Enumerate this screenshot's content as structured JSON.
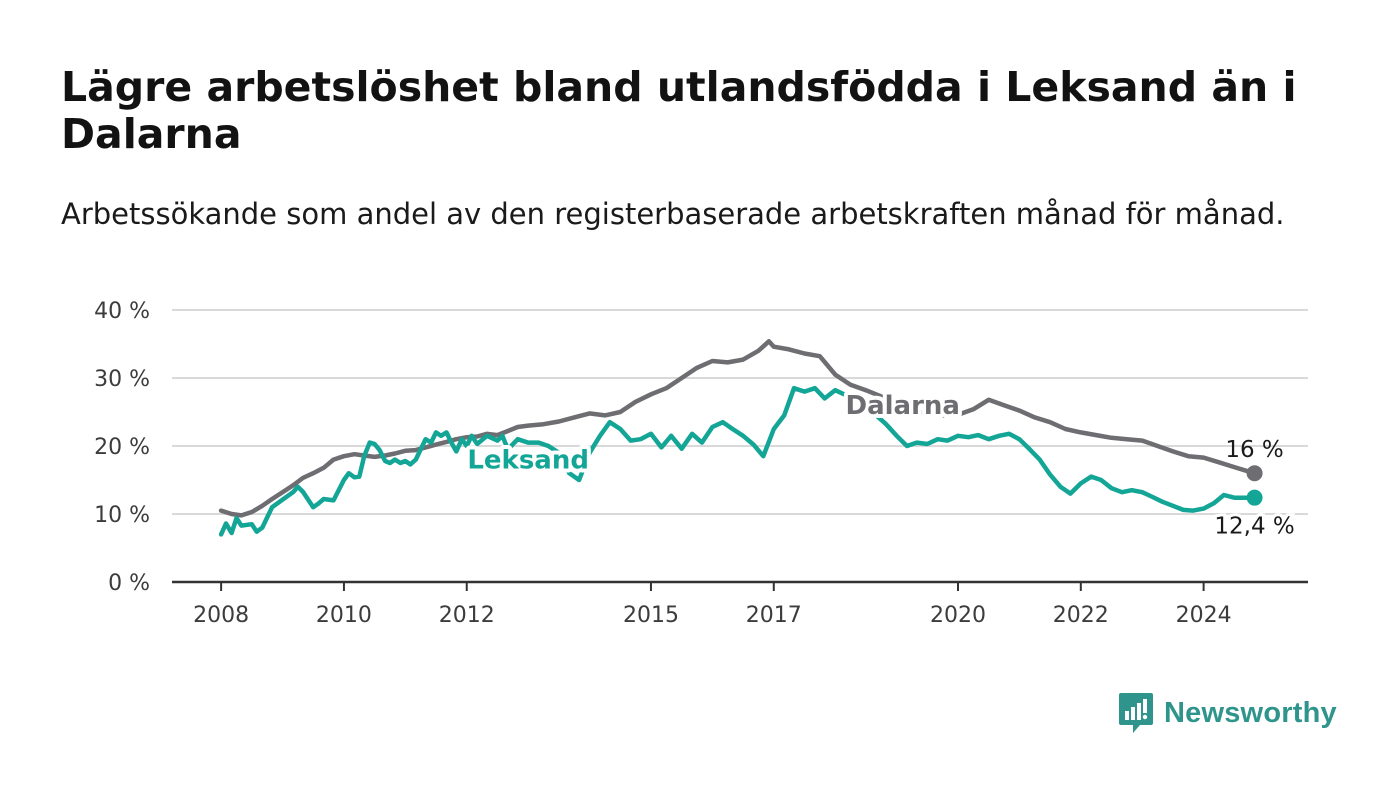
{
  "header": {
    "title": "Lägre arbetslöshet bland utlandsfödda i Leksand än i Dalarna",
    "subtitle": "Arbetssökande som andel av den registerbaserade arbetskraften månad för månad."
  },
  "brand": {
    "name": "Newsworthy",
    "icon": "newsworthy-logo-icon",
    "color": "#2f958c"
  },
  "colors": {
    "dalarna": "#6e6d72",
    "leksand": "#13a596",
    "grid": "#d9d9d9",
    "axis": "#333333"
  },
  "chart_data": {
    "type": "line",
    "y_ticks": [
      "0 %",
      "10 %",
      "20 %",
      "30 %",
      "40 %"
    ],
    "y_tick_values": [
      0,
      10,
      20,
      30,
      40
    ],
    "ylim": [
      0,
      40
    ],
    "x_ticks": [
      "2008",
      "2010",
      "2012",
      "2015",
      "2017",
      "2020",
      "2022",
      "2024"
    ],
    "x_tick_values": [
      2008,
      2010,
      2012,
      2015,
      2017,
      2020,
      2022,
      2024
    ],
    "xlim": [
      2007.2,
      2025.7
    ],
    "grid": true,
    "series": [
      {
        "name": "Dalarna",
        "color": "#6e6d72",
        "end_label": "16 %",
        "x": [
          2008.0,
          2008.17,
          2008.33,
          2008.5,
          2008.67,
          2008.83,
          2009.0,
          2009.17,
          2009.33,
          2009.5,
          2009.67,
          2009.83,
          2010.0,
          2010.17,
          2010.33,
          2010.5,
          2010.67,
          2010.83,
          2011.0,
          2011.17,
          2011.33,
          2011.5,
          2011.67,
          2011.83,
          2012.0,
          2012.17,
          2012.33,
          2012.5,
          2012.67,
          2012.83,
          2013.0,
          2013.25,
          2013.5,
          2013.75,
          2014.0,
          2014.25,
          2014.5,
          2014.75,
          2015.0,
          2015.25,
          2015.5,
          2015.75,
          2016.0,
          2016.25,
          2016.5,
          2016.75,
          2016.92,
          2017.0,
          2017.25,
          2017.5,
          2017.75,
          2018.0,
          2018.25,
          2018.5,
          2018.75,
          2019.0,
          2019.25,
          2019.5,
          2019.75,
          2020.0,
          2020.25,
          2020.5,
          2020.75,
          2021.0,
          2021.25,
          2021.5,
          2021.75,
          2022.0,
          2022.25,
          2022.5,
          2022.75,
          2023.0,
          2023.25,
          2023.5,
          2023.75,
          2024.0,
          2024.25,
          2024.5,
          2024.75,
          2024.83
        ],
        "y": [
          10.5,
          10.0,
          9.8,
          10.3,
          11.2,
          12.2,
          13.2,
          14.2,
          15.3,
          16.0,
          16.8,
          18.0,
          18.5,
          18.8,
          18.6,
          18.4,
          18.6,
          18.9,
          19.3,
          19.4,
          19.8,
          20.2,
          20.6,
          21.0,
          21.3,
          21.4,
          21.8,
          21.6,
          22.2,
          22.8,
          23.0,
          23.2,
          23.6,
          24.2,
          24.8,
          24.5,
          25.0,
          26.5,
          27.6,
          28.5,
          30.0,
          31.5,
          32.5,
          32.3,
          32.7,
          34.0,
          35.4,
          34.6,
          34.2,
          33.6,
          33.2,
          30.5,
          29.0,
          28.2,
          27.3,
          26.3,
          25.3,
          24.8,
          24.5,
          24.6,
          25.4,
          26.8,
          26.0,
          25.2,
          24.2,
          23.5,
          22.5,
          22.0,
          21.6,
          21.2,
          21.0,
          20.8,
          20.0,
          19.2,
          18.5,
          18.3,
          17.6,
          16.9,
          16.2,
          16.0
        ]
      },
      {
        "name": "Leksand",
        "color": "#13a596",
        "end_label": "12,4 %",
        "x": [
          2008.0,
          2008.08,
          2008.17,
          2008.25,
          2008.33,
          2008.5,
          2008.58,
          2008.67,
          2008.83,
          2009.0,
          2009.17,
          2009.25,
          2009.33,
          2009.5,
          2009.58,
          2009.67,
          2009.83,
          2010.0,
          2010.08,
          2010.17,
          2010.25,
          2010.33,
          2010.42,
          2010.5,
          2010.58,
          2010.67,
          2010.75,
          2010.83,
          2010.92,
          2011.0,
          2011.08,
          2011.17,
          2011.25,
          2011.33,
          2011.42,
          2011.5,
          2011.58,
          2011.67,
          2011.75,
          2011.83,
          2011.92,
          2012.0,
          2012.08,
          2012.17,
          2012.33,
          2012.5,
          2012.58,
          2012.67,
          2012.83,
          2013.0,
          2013.17,
          2013.33,
          2013.5,
          2013.67,
          2013.83,
          2014.0,
          2014.17,
          2014.33,
          2014.5,
          2014.67,
          2014.83,
          2015.0,
          2015.17,
          2015.33,
          2015.5,
          2015.67,
          2015.83,
          2016.0,
          2016.17,
          2016.33,
          2016.5,
          2016.67,
          2016.83,
          2017.0,
          2017.17,
          2017.33,
          2017.5,
          2017.67,
          2017.83,
          2018.0,
          2018.17,
          2018.33,
          2018.5,
          2018.67,
          2018.83,
          2019.0,
          2019.17,
          2019.33,
          2019.5,
          2019.67,
          2019.83,
          2020.0,
          2020.17,
          2020.33,
          2020.5,
          2020.67,
          2020.83,
          2021.0,
          2021.17,
          2021.33,
          2021.5,
          2021.67,
          2021.83,
          2022.0,
          2022.17,
          2022.33,
          2022.5,
          2022.67,
          2022.83,
          2023.0,
          2023.17,
          2023.33,
          2023.5,
          2023.67,
          2023.83,
          2024.0,
          2024.17,
          2024.33,
          2024.5,
          2024.83
        ],
        "y": [
          7.0,
          8.6,
          7.2,
          9.4,
          8.3,
          8.5,
          7.4,
          8.0,
          11.0,
          12.1,
          13.2,
          14.0,
          13.3,
          11.0,
          11.5,
          12.2,
          12.0,
          15.0,
          16.0,
          15.4,
          15.5,
          18.5,
          20.5,
          20.3,
          19.4,
          17.8,
          17.5,
          18.0,
          17.5,
          17.8,
          17.3,
          18.0,
          19.5,
          21.0,
          20.5,
          22.0,
          21.5,
          22.0,
          20.5,
          19.2,
          21.0,
          20.0,
          21.5,
          20.3,
          21.5,
          20.8,
          21.5,
          19.5,
          21.0,
          20.5,
          20.5,
          20.0,
          19.0,
          16.0,
          15.0,
          19.0,
          21.5,
          23.5,
          22.5,
          20.8,
          21.0,
          21.8,
          19.8,
          21.5,
          19.6,
          21.8,
          20.5,
          22.8,
          23.5,
          22.5,
          21.5,
          20.2,
          18.5,
          22.5,
          24.5,
          28.5,
          28.0,
          28.5,
          27.0,
          28.2,
          27.5,
          26.5,
          25.8,
          24.5,
          23.2,
          21.5,
          20.0,
          20.5,
          20.3,
          21.0,
          20.8,
          21.5,
          21.3,
          21.6,
          21.0,
          21.5,
          21.8,
          21.0,
          19.5,
          18.0,
          15.8,
          14.0,
          13.0,
          14.5,
          15.5,
          15.0,
          13.8,
          13.2,
          13.5,
          13.2,
          12.5,
          11.8,
          11.2,
          10.6,
          10.5,
          10.8,
          11.6,
          12.8,
          12.4,
          12.4
        ]
      }
    ]
  }
}
